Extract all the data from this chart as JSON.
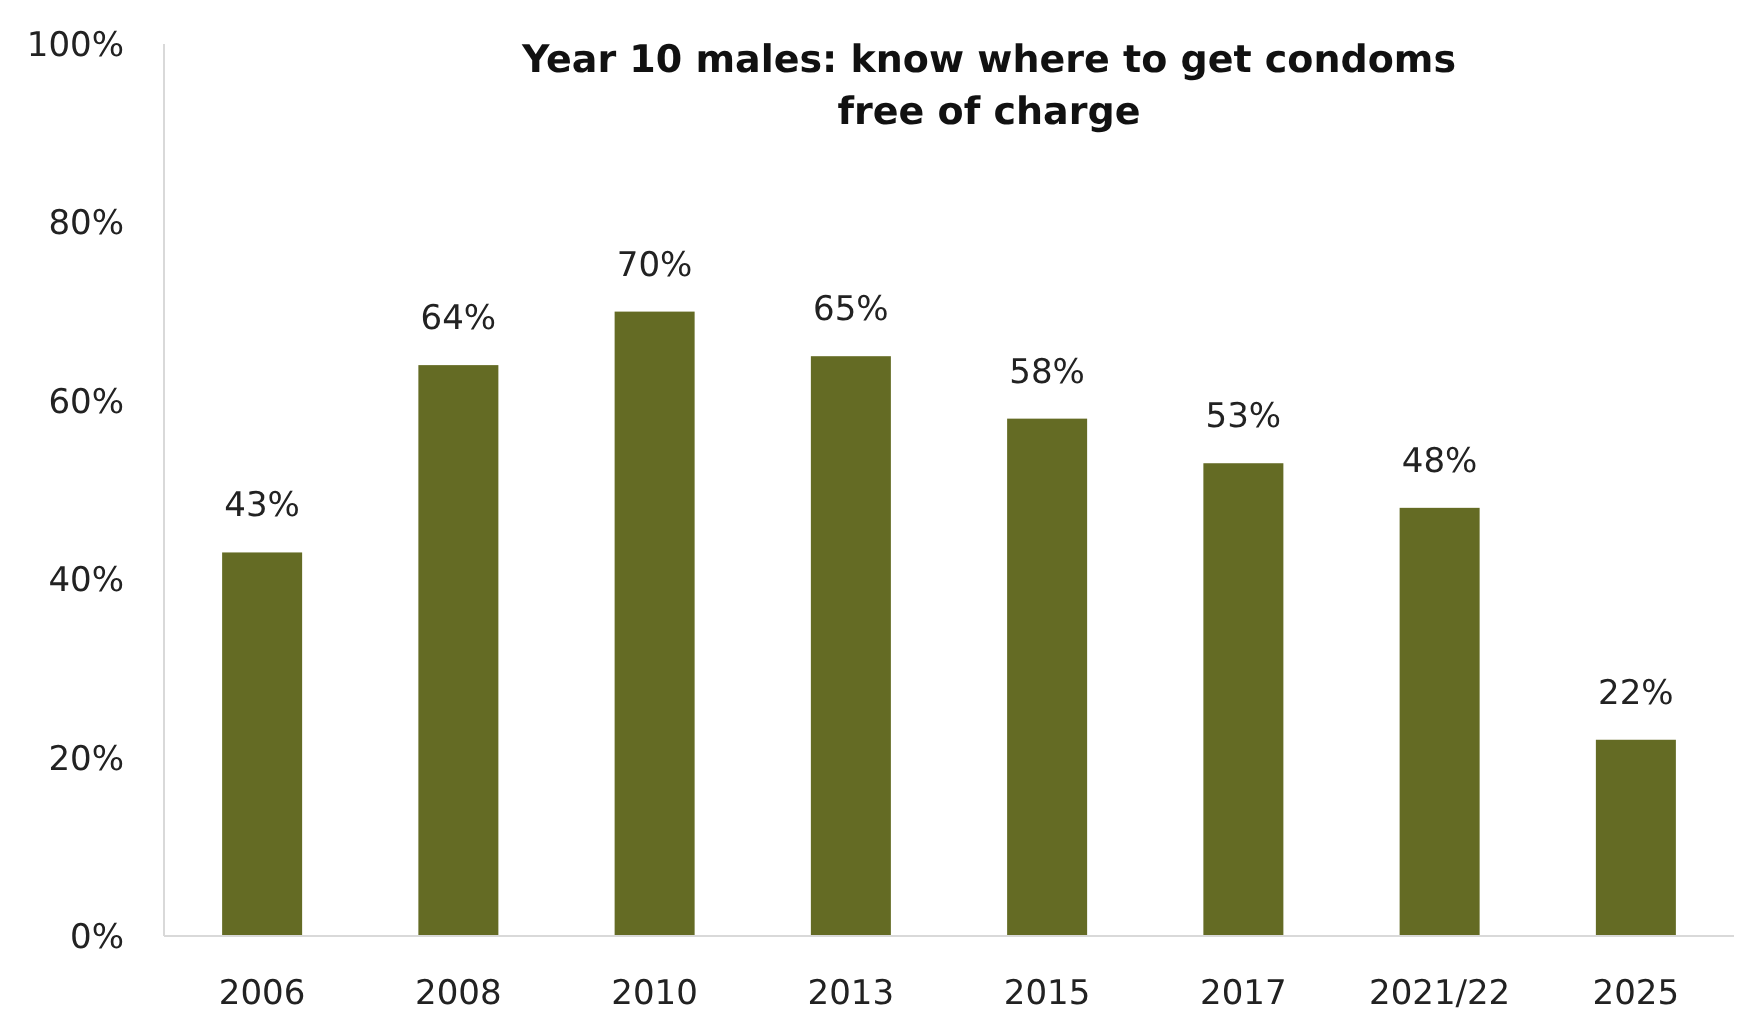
{
  "chart_data": {
    "type": "bar",
    "title": "Year 10 males: know where to get condoms free of charge",
    "categories": [
      "2006",
      "2008",
      "2010",
      "2013",
      "2015",
      "2017",
      "2021/22",
      "2025"
    ],
    "values": [
      43,
      64,
      70,
      65,
      58,
      53,
      48,
      22
    ],
    "value_labels": [
      "43%",
      "64%",
      "70%",
      "65%",
      "58%",
      "53%",
      "48%",
      "22%"
    ],
    "color": "#646b24",
    "ylim": [
      0,
      100
    ],
    "yticks": [
      {
        "value": 0,
        "label": "0%"
      },
      {
        "value": 20,
        "label": "20%"
      },
      {
        "value": 40,
        "label": "40%"
      },
      {
        "value": 60,
        "label": "60%"
      },
      {
        "value": 80,
        "label": "80%"
      },
      {
        "value": 100,
        "label": "100%"
      }
    ],
    "grid": false
  }
}
